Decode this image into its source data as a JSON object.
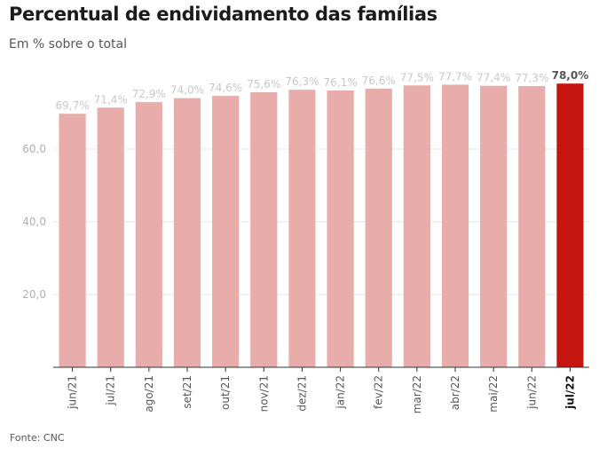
{
  "header": {
    "title": "Percentual de endividamento das famílias",
    "subtitle": "Em % sobre o total"
  },
  "footer": {
    "source": "Fonte: CNC"
  },
  "colors": {
    "bar": "#e8adaa",
    "bar_highlight": "#c4160e",
    "value_label": "#c8c8c8",
    "value_label_highlight": "#555555",
    "axis_text": "#b0b0b0",
    "grid": "#e6e6e6",
    "baseline": "#333333",
    "category_text": "#555555",
    "category_text_highlight": "#111111"
  },
  "chart_data": {
    "type": "bar",
    "title": "Percentual de endividamento das famílias",
    "subtitle": "Em % sobre o total",
    "xlabel": "",
    "ylabel": "",
    "categories": [
      "jun/21",
      "jul/21",
      "ago/21",
      "set/21",
      "out/21",
      "nov/21",
      "dez/21",
      "jan/22",
      "fev/22",
      "mar/22",
      "abr/22",
      "mai/22",
      "jun/22",
      "jul/22"
    ],
    "values": [
      69.7,
      71.4,
      72.9,
      74.0,
      74.6,
      75.6,
      76.3,
      76.1,
      76.6,
      77.5,
      77.7,
      77.4,
      77.3,
      78.0
    ],
    "value_labels": [
      "69,7%",
      "71,4%",
      "72,9%",
      "74,0%",
      "74,6%",
      "75,6%",
      "76,3%",
      "76,1%",
      "76,6%",
      "77,5%",
      "77,7%",
      "77,4%",
      "77,3%",
      "78,0%"
    ],
    "highlight_index": 13,
    "ylim": [
      0,
      80
    ],
    "yticks": [
      20,
      40,
      60
    ],
    "ytick_labels": [
      "20,0",
      "40,0",
      "60,0"
    ],
    "grid": true,
    "legend": "none"
  }
}
